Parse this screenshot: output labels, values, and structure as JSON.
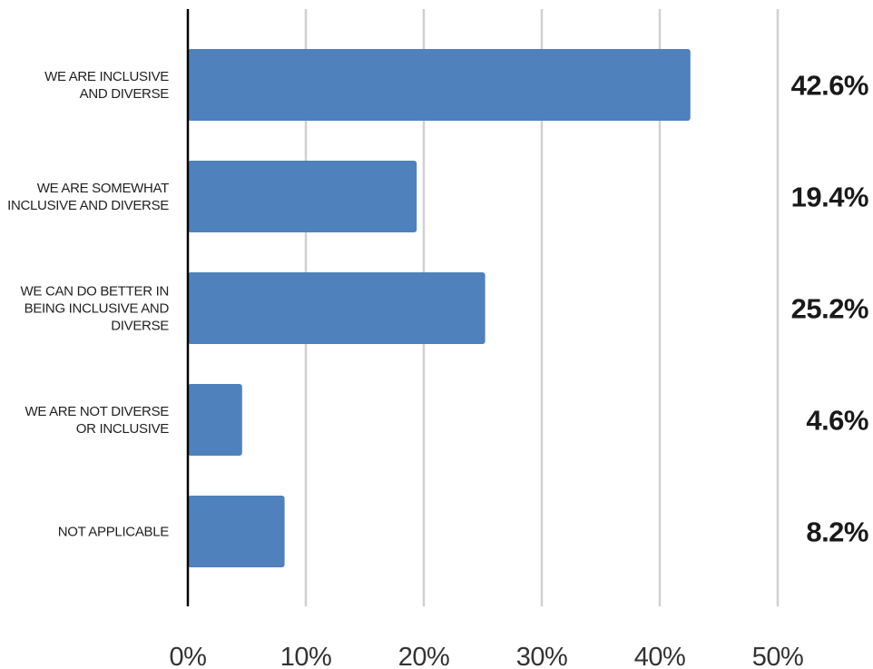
{
  "chart_data": {
    "type": "bar",
    "orientation": "horizontal",
    "title": "",
    "xlabel": "",
    "ylabel": "",
    "xlim": [
      0,
      50
    ],
    "x_ticks": [
      "0%",
      "10%",
      "20%",
      "30%",
      "40%",
      "50%"
    ],
    "grid": "vertical",
    "categories": [
      [
        "WE ARE INCLUSIVE",
        "AND DIVERSE"
      ],
      [
        "WE ARE SOMEWHAT",
        "INCLUSIVE AND DIVERSE"
      ],
      [
        "WE CAN DO BETTER IN",
        "BEING INCLUSIVE AND",
        "DIVERSE"
      ],
      [
        "WE ARE NOT DIVERSE",
        "OR INCLUSIVE"
      ],
      [
        "NOT APPLICABLE"
      ]
    ],
    "values": [
      42.6,
      19.4,
      25.2,
      4.6,
      8.2
    ],
    "value_labels": [
      "42.6%",
      "19.4%",
      "25.2%",
      "4.6%",
      "8.2%"
    ],
    "colors": {
      "bar": "#4f81bd",
      "grid": "#d0d0d0",
      "axis": "#000000"
    }
  }
}
